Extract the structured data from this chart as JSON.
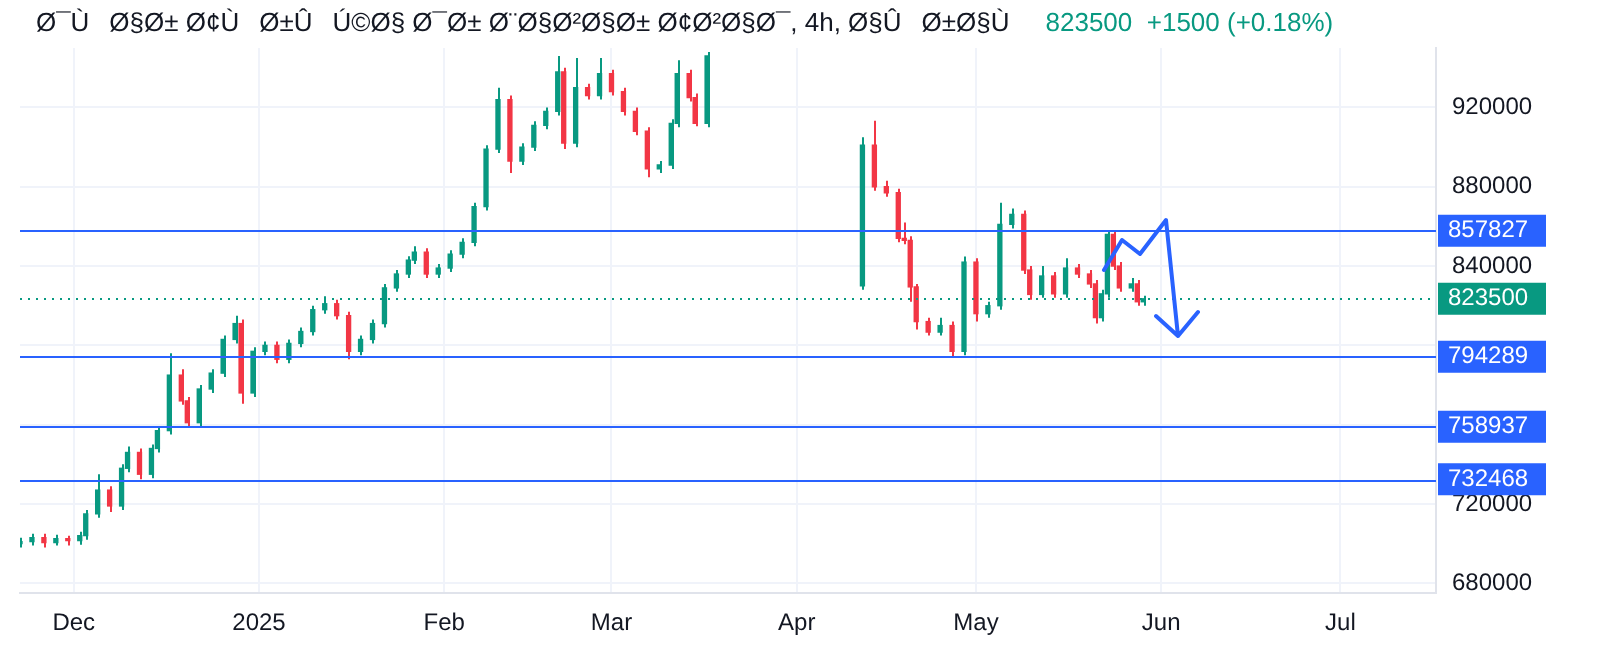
{
  "chart_data": {
    "type": "candlestick",
    "title": "Ø¯ÙØ§Ø± Ø¢ÙØ±ÛÚ©Ø§ Ø¯Ø± Ø¨Ø§Ø²Ø§Ø± Ø¢Ø²Ø§Ø¯, 4h, Ø§ÛØ±Ø§Ù",
    "annotations": [
      "823500  +1500 (+0.18%)"
    ],
    "x": [
      "2024-11-22",
      "2024-11-24",
      "2024-11-26",
      "2024-11-28",
      "2024-11-30",
      "2024-12-02",
      "2024-12-03",
      "2024-12-05",
      "2024-12-07",
      "2024-12-09",
      "2024-12-10",
      "2024-12-12",
      "2024-12-14",
      "2024-12-15",
      "2024-12-17",
      "2024-12-19",
      "2024-12-20",
      "2024-12-22",
      "2024-12-24",
      "2024-12-26",
      "2024-12-28",
      "2024-12-29",
      "2024-12-31",
      "2025-01-02",
      "2025-01-04",
      "2025-01-06",
      "2025-01-08",
      "2025-01-10",
      "2025-01-12",
      "2025-01-14",
      "2025-01-16",
      "2025-01-18",
      "2025-01-20",
      "2025-01-22",
      "2025-01-24",
      "2025-01-26",
      "2025-01-27",
      "2025-01-29",
      "2025-01-31",
      "2025-02-02",
      "2025-02-04",
      "2025-02-06",
      "2025-02-08",
      "2025-02-10",
      "2025-02-12",
      "2025-02-14",
      "2025-02-16",
      "2025-02-18",
      "2025-02-20",
      "2025-02-21",
      "2025-02-23",
      "2025-02-25",
      "2025-02-27",
      "2025-03-01",
      "2025-03-03",
      "2025-03-05",
      "2025-03-07",
      "2025-03-09",
      "2025-03-11",
      "2025-03-12",
      "2025-03-14",
      "2025-03-15",
      "2025-03-17",
      "2025-04-12",
      "2025-04-14",
      "2025-04-16",
      "2025-04-18",
      "2025-04-19",
      "2025-04-20",
      "2025-04-21",
      "2025-04-23",
      "2025-04-25",
      "2025-04-27",
      "2025-04-29",
      "2025-05-01",
      "2025-05-03",
      "2025-05-05",
      "2025-05-07",
      "2025-05-09",
      "2025-05-10",
      "2025-05-12",
      "2025-05-14",
      "2025-05-16",
      "2025-05-18",
      "2025-05-20",
      "2025-05-21",
      "2025-05-22",
      "2025-05-23",
      "2025-05-24",
      "2025-05-25",
      "2025-05-27",
      "2025-05-28",
      "2025-05-29"
    ],
    "ohlc": [
      [
        700000,
        703000,
        698000,
        701000
      ],
      [
        701000,
        705000,
        699000,
        703000
      ],
      [
        703000,
        705000,
        698000,
        700500
      ],
      [
        700500,
        704500,
        699000,
        702500
      ],
      [
        702500,
        704000,
        699000,
        701500
      ],
      [
        701500,
        706000,
        699500,
        704000
      ],
      [
        704000,
        717000,
        702000,
        715000
      ],
      [
        715000,
        735000,
        713000,
        727000
      ],
      [
        727000,
        729000,
        716000,
        719000
      ],
      [
        719000,
        740000,
        717000,
        738000
      ],
      [
        738000,
        749000,
        736000,
        746000
      ],
      [
        746000,
        748000,
        732468,
        735000
      ],
      [
        735000,
        750000,
        733000,
        748000
      ],
      [
        748000,
        759000,
        746000,
        757000
      ],
      [
        757000,
        796000,
        755000,
        785000
      ],
      [
        785000,
        788000,
        770000,
        772000
      ],
      [
        772000,
        774000,
        758937,
        761000
      ],
      [
        761000,
        780000,
        759000,
        778000
      ],
      [
        778000,
        788000,
        776000,
        786000
      ],
      [
        786000,
        805000,
        784000,
        803000
      ],
      [
        803000,
        815000,
        801000,
        811000
      ],
      [
        811000,
        813000,
        770500,
        776000
      ],
      [
        776000,
        799000,
        774000,
        797000
      ],
      [
        797000,
        802000,
        795000,
        800000
      ],
      [
        800000,
        802000,
        791000,
        793000
      ],
      [
        793000,
        803000,
        791000,
        801000
      ],
      [
        801000,
        809000,
        799000,
        807000
      ],
      [
        807000,
        820000,
        805000,
        818000
      ],
      [
        818000,
        824800,
        816000,
        821000
      ],
      [
        821000,
        823000,
        813000,
        815000
      ],
      [
        815000,
        817000,
        793000,
        797000
      ],
      [
        797000,
        805000,
        795000,
        803000
      ],
      [
        803000,
        813000,
        801000,
        811000
      ],
      [
        811000,
        831000,
        809000,
        829000
      ],
      [
        829000,
        838000,
        827000,
        836000
      ],
      [
        836000,
        845000,
        834000,
        843000
      ],
      [
        843000,
        850000,
        841000,
        847000
      ],
      [
        847000,
        849000,
        834000,
        836000
      ],
      [
        836000,
        841000,
        834000,
        839000
      ],
      [
        839000,
        848000,
        837000,
        846000
      ],
      [
        846000,
        854000,
        844000,
        852000
      ],
      [
        852000,
        872000,
        850000,
        870000
      ],
      [
        870000,
        901000,
        868000,
        899000
      ],
      [
        899000,
        930000,
        897000,
        924000
      ],
      [
        924000,
        926000,
        887000,
        893000
      ],
      [
        893000,
        902000,
        891000,
        900000
      ],
      [
        900000,
        913000,
        898000,
        911000
      ],
      [
        911000,
        920000,
        909000,
        918000
      ],
      [
        918000,
        946000,
        916000,
        938000
      ],
      [
        938000,
        940000,
        899000,
        902000
      ],
      [
        902000,
        945000,
        900000,
        930000
      ],
      [
        930000,
        932000,
        924000,
        926000
      ],
      [
        926000,
        945000,
        924000,
        937000
      ],
      [
        937000,
        939000,
        926000,
        928000
      ],
      [
        928000,
        930000,
        916000,
        918000
      ],
      [
        918000,
        920000,
        906000,
        908000
      ],
      [
        908000,
        910000,
        884800,
        889000
      ],
      [
        889000,
        893000,
        887000,
        891000
      ],
      [
        891000,
        914000,
        889000,
        912000
      ],
      [
        912000,
        943800,
        910000,
        937000
      ],
      [
        937000,
        939000,
        923000,
        925000
      ],
      [
        925000,
        927000,
        910500,
        912000
      ],
      [
        912000,
        948000,
        910000,
        946000
      ],
      [
        830000,
        905000,
        828000,
        901000
      ],
      [
        901000,
        913300,
        878000,
        880000
      ],
      [
        880000,
        883000,
        875000,
        877000
      ],
      [
        877000,
        879000,
        852000,
        854000
      ],
      [
        854000,
        862000,
        851000,
        853000
      ],
      [
        853000,
        855000,
        822000,
        829500
      ],
      [
        829500,
        831000,
        808000,
        812000
      ],
      [
        812000,
        814000,
        805000,
        806700
      ],
      [
        806700,
        814000,
        805000,
        810000
      ],
      [
        810000,
        812000,
        794289,
        797000
      ],
      [
        797000,
        844800,
        795000,
        842000
      ],
      [
        842000,
        844000,
        812000,
        816000
      ],
      [
        816000,
        822000,
        814000,
        820000
      ],
      [
        820000,
        872000,
        818000,
        861000
      ],
      [
        861000,
        869000,
        859000,
        866000
      ],
      [
        866000,
        868000,
        836000,
        838000
      ],
      [
        838000,
        840000,
        823000,
        825700
      ],
      [
        825700,
        840000,
        824000,
        835000
      ],
      [
        835000,
        837000,
        824000,
        826000
      ],
      [
        826000,
        844000,
        824000,
        839000
      ],
      [
        839000,
        841000,
        834000,
        836000
      ],
      [
        836000,
        838000,
        829000,
        831000
      ],
      [
        831000,
        833000,
        811000,
        814000
      ],
      [
        814000,
        828000,
        812000,
        826000
      ],
      [
        826000,
        857827,
        824000,
        856000
      ],
      [
        856000,
        858000,
        838000,
        840000
      ],
      [
        840000,
        842000,
        827000,
        829000
      ],
      [
        829000,
        834000,
        827000,
        831000
      ],
      [
        831000,
        833000,
        820000,
        822000
      ],
      [
        822000,
        825000,
        820000,
        823500
      ]
    ],
    "xlim": [
      "2024-11-22",
      "2025-07-17"
    ],
    "xticks": [
      {
        "value": "2024-12-01",
        "label": "Dec"
      },
      {
        "value": "2025-01-01",
        "label": "2025"
      },
      {
        "value": "2025-02-01",
        "label": "Feb"
      },
      {
        "value": "2025-03-01",
        "label": "Mar"
      },
      {
        "value": "2025-04-01",
        "label": "Apr"
      },
      {
        "value": "2025-05-01",
        "label": "May"
      },
      {
        "value": "2025-06-01",
        "label": "Jun"
      },
      {
        "value": "2025-07-01",
        "label": "Jul"
      }
    ],
    "ylim": [
      675000,
      950000
    ],
    "yticks": [
      680000,
      720000,
      {
        "value": 760000,
        "label": null
      },
      {
        "value": 800000,
        "label": null
      },
      840000,
      880000,
      920000
    ],
    "ref_lines": [
      {
        "axis": "y",
        "value": 857827,
        "label": "857827",
        "color": "#2962ff"
      },
      {
        "axis": "y",
        "value": 823500,
        "label": "823500",
        "color": "#089981",
        "line_style": "dotted"
      },
      {
        "axis": "y",
        "value": 794289,
        "label": "794289",
        "color": "#2962ff"
      },
      {
        "axis": "y",
        "value": 758937,
        "label": "758937",
        "color": "#2962ff"
      },
      {
        "axis": "y",
        "value": 732468,
        "label": "732468",
        "color": "#2962ff"
      }
    ],
    "grid": true
  }
}
